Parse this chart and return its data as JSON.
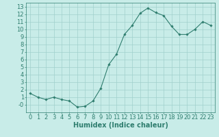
{
  "x": [
    0,
    1,
    2,
    3,
    4,
    5,
    6,
    7,
    8,
    9,
    10,
    11,
    12,
    13,
    14,
    15,
    16,
    17,
    18,
    19,
    20,
    21,
    22,
    23
  ],
  "y": [
    1.5,
    1.0,
    0.7,
    1.0,
    0.7,
    0.5,
    -0.3,
    -0.2,
    0.5,
    2.2,
    5.3,
    6.7,
    9.3,
    10.5,
    12.1,
    12.8,
    12.2,
    11.8,
    10.4,
    9.3,
    9.3,
    10.0,
    11.0,
    10.5
  ],
  "line_color": "#2e7d6e",
  "marker_color": "#2e7d6e",
  "bg_color": "#c8ece8",
  "grid_color": "#a0d0cc",
  "xlabel": "Humidex (Indice chaleur)",
  "ylabel": "",
  "title": "",
  "xlim": [
    -0.5,
    23.5
  ],
  "ylim": [
    -1,
    13.5
  ],
  "yticks": [
    0,
    1,
    2,
    3,
    4,
    5,
    6,
    7,
    8,
    9,
    10,
    11,
    12,
    13
  ],
  "ytick_labels": [
    "",
    "1",
    "2",
    "3",
    "4",
    "5",
    "6",
    "7",
    "8",
    "9",
    "10",
    "11",
    "12",
    "13"
  ],
  "xticks": [
    0,
    1,
    2,
    3,
    4,
    5,
    6,
    7,
    8,
    9,
    10,
    11,
    12,
    13,
    14,
    15,
    16,
    17,
    18,
    19,
    20,
    21,
    22,
    23
  ],
  "xlabel_fontsize": 7,
  "tick_fontsize": 6
}
